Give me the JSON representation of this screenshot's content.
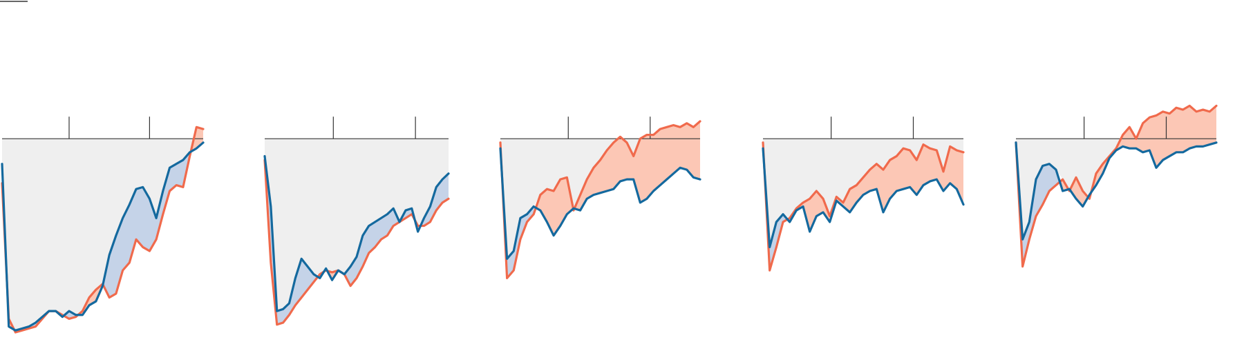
{
  "chart_data": [
    {
      "type": "line",
      "x": [
        0,
        1,
        2,
        3,
        4,
        5,
        6,
        7,
        8,
        9,
        10,
        11,
        12,
        13,
        14,
        15,
        16,
        17,
        18,
        19,
        20,
        21,
        22,
        23,
        24,
        25,
        26,
        27,
        28,
        29,
        30
      ],
      "xlim": [
        0,
        30
      ],
      "xticks": [
        10,
        22
      ],
      "ylim": [
        -100,
        20
      ],
      "band_color": "#efefef",
      "fill_colors": [
        "#c5d3e8",
        "#fcc7b5"
      ],
      "series": [
        {
          "color": "#14699e",
          "values": [
            -13,
            -97,
            -99,
            -98,
            -97,
            -95,
            -92,
            -89,
            -89,
            -92,
            -89,
            -91,
            -91,
            -86,
            -84,
            -76,
            -60,
            -50,
            -41,
            -34,
            -26,
            -25,
            -31,
            -41,
            -27,
            -15,
            -13,
            -11,
            -7,
            -5,
            -2
          ]
        },
        {
          "color": "#f06a4c",
          "values": [
            -23,
            -93,
            -100,
            -99,
            -98,
            -97,
            -93,
            -89,
            -89,
            -91,
            -93,
            -92,
            -89,
            -82,
            -78,
            -75,
            -82,
            -80,
            -68,
            -64,
            -52,
            -56,
            -58,
            -52,
            -39,
            -27,
            -24,
            -25,
            -9,
            6,
            5
          ]
        }
      ]
    },
    {
      "type": "line",
      "x": [
        0,
        1,
        2,
        3,
        4,
        5,
        6,
        7,
        8,
        9,
        10,
        11,
        12,
        13,
        14,
        15,
        16,
        17,
        18,
        19,
        20,
        21,
        22,
        23,
        24,
        25,
        26,
        27,
        28,
        29,
        30
      ],
      "xlim": [
        0,
        30
      ],
      "xticks": [
        11.2,
        24.6
      ],
      "ylim": [
        -100,
        20
      ],
      "band_color": "#efefef",
      "fill_colors": [
        "#c5d3e8",
        "#fcc7b5"
      ],
      "series": [
        {
          "color": "#14699e",
          "values": [
            -9,
            -35,
            -89,
            -88,
            -85,
            -72,
            -62,
            -66,
            -70,
            -72,
            -67,
            -73,
            -68,
            -70,
            -66,
            -61,
            -50,
            -45,
            -43,
            -41,
            -39,
            -36,
            -43,
            -37,
            -36,
            -48,
            -41,
            -35,
            -25,
            -21,
            -18
          ]
        },
        {
          "color": "#f06a4c",
          "values": [
            -11,
            -64,
            -96,
            -95,
            -91,
            -86,
            -82,
            -78,
            -74,
            -70,
            -68,
            -69,
            -68,
            -70,
            -76,
            -72,
            -66,
            -59,
            -56,
            -52,
            -50,
            -45,
            -43,
            -41,
            -39,
            -45,
            -45,
            -43,
            -37,
            -33,
            -31
          ]
        }
      ]
    },
    {
      "type": "line",
      "x": [
        0,
        1,
        2,
        3,
        4,
        5,
        6,
        7,
        8,
        9,
        10,
        11,
        12,
        13,
        14,
        15,
        16,
        17,
        18,
        19,
        20,
        21,
        22,
        23,
        24,
        25,
        26,
        27,
        28,
        29,
        30
      ],
      "xlim": [
        0,
        30
      ],
      "xticks": [
        10.2,
        22.5
      ],
      "ylim": [
        -100,
        20
      ],
      "band_color": "#efefef",
      "fill_colors": [
        "#c5d3e8",
        "#fcc7b5"
      ],
      "series": [
        {
          "color": "#14699e",
          "values": [
            -5,
            -62,
            -58,
            -41,
            -39,
            -35,
            -37,
            -43,
            -50,
            -45,
            -39,
            -36,
            -37,
            -31,
            -29,
            -28,
            -27,
            -26,
            -22,
            -21,
            -21,
            -33,
            -31,
            -27,
            -24,
            -21,
            -18,
            -15,
            -16,
            -20,
            -21
          ]
        },
        {
          "color": "#f06a4c",
          "values": [
            -2,
            -72,
            -68,
            -52,
            -43,
            -39,
            -29,
            -26,
            -27,
            -21,
            -20,
            -37,
            -29,
            -21,
            -15,
            -11,
            -6,
            -2,
            1,
            -2,
            -9,
            0,
            2,
            2,
            5,
            6,
            7,
            6,
            8,
            6,
            9
          ]
        }
      ]
    },
    {
      "type": "line",
      "x": [
        0,
        1,
        2,
        3,
        4,
        5,
        6,
        7,
        8,
        9,
        10,
        11,
        12,
        13,
        14,
        15,
        16,
        17,
        18,
        19,
        20,
        21,
        22,
        23,
        24,
        25,
        26,
        27,
        28,
        29,
        30
      ],
      "xlim": [
        0,
        30
      ],
      "xticks": [
        10.2,
        22.5
      ],
      "ylim": [
        -100,
        20
      ],
      "band_color": "#efefef",
      "fill_colors": [
        "#c5d3e8",
        "#fcc7b5"
      ],
      "series": [
        {
          "color": "#14699e",
          "values": [
            -5,
            -56,
            -43,
            -39,
            -43,
            -37,
            -35,
            -48,
            -40,
            -38,
            -43,
            -32,
            -35,
            -38,
            -33,
            -29,
            -27,
            -26,
            -38,
            -31,
            -27,
            -26,
            -25,
            -29,
            -24,
            -22,
            -21,
            -27,
            -23,
            -26,
            -34
          ]
        },
        {
          "color": "#f06a4c",
          "values": [
            -2,
            -68,
            -56,
            -43,
            -41,
            -36,
            -33,
            -31,
            -27,
            -31,
            -40,
            -30,
            -33,
            -26,
            -24,
            -20,
            -16,
            -13,
            -16,
            -11,
            -9,
            -5,
            -6,
            -11,
            -3,
            -5,
            -6,
            -17,
            -4,
            -6,
            -7
          ]
        }
      ]
    },
    {
      "type": "line",
      "x": [
        0,
        1,
        2,
        3,
        4,
        5,
        6,
        7,
        8,
        9,
        10,
        11,
        12,
        13,
        14,
        15,
        16,
        17,
        18,
        19,
        20,
        21,
        22,
        23,
        24,
        25,
        26,
        27,
        28,
        29,
        30
      ],
      "xlim": [
        0,
        30
      ],
      "xticks": [
        10.2,
        22.5
      ],
      "ylim": [
        -100,
        20
      ],
      "band_color": "#efefef",
      "fill_colors": [
        "#c5d3e8",
        "#fcc7b5"
      ],
      "series": [
        {
          "color": "#14699e",
          "values": [
            -2,
            -52,
            -43,
            -21,
            -14,
            -13,
            -16,
            -27,
            -26,
            -31,
            -35,
            -29,
            -24,
            -18,
            -10,
            -6,
            -4,
            -5,
            -5,
            -7,
            -6,
            -15,
            -11,
            -9,
            -7,
            -7,
            -5,
            -4,
            -4,
            -3,
            -2
          ]
        },
        {
          "color": "#f06a4c",
          "values": [
            -2,
            -66,
            -52,
            -40,
            -34,
            -27,
            -24,
            -21,
            -27,
            -20,
            -27,
            -31,
            -18,
            -13,
            -9,
            -5,
            2,
            6,
            0,
            8,
            11,
            12,
            14,
            13,
            16,
            15,
            17,
            14,
            15,
            14,
            17
          ]
        }
      ]
    }
  ]
}
